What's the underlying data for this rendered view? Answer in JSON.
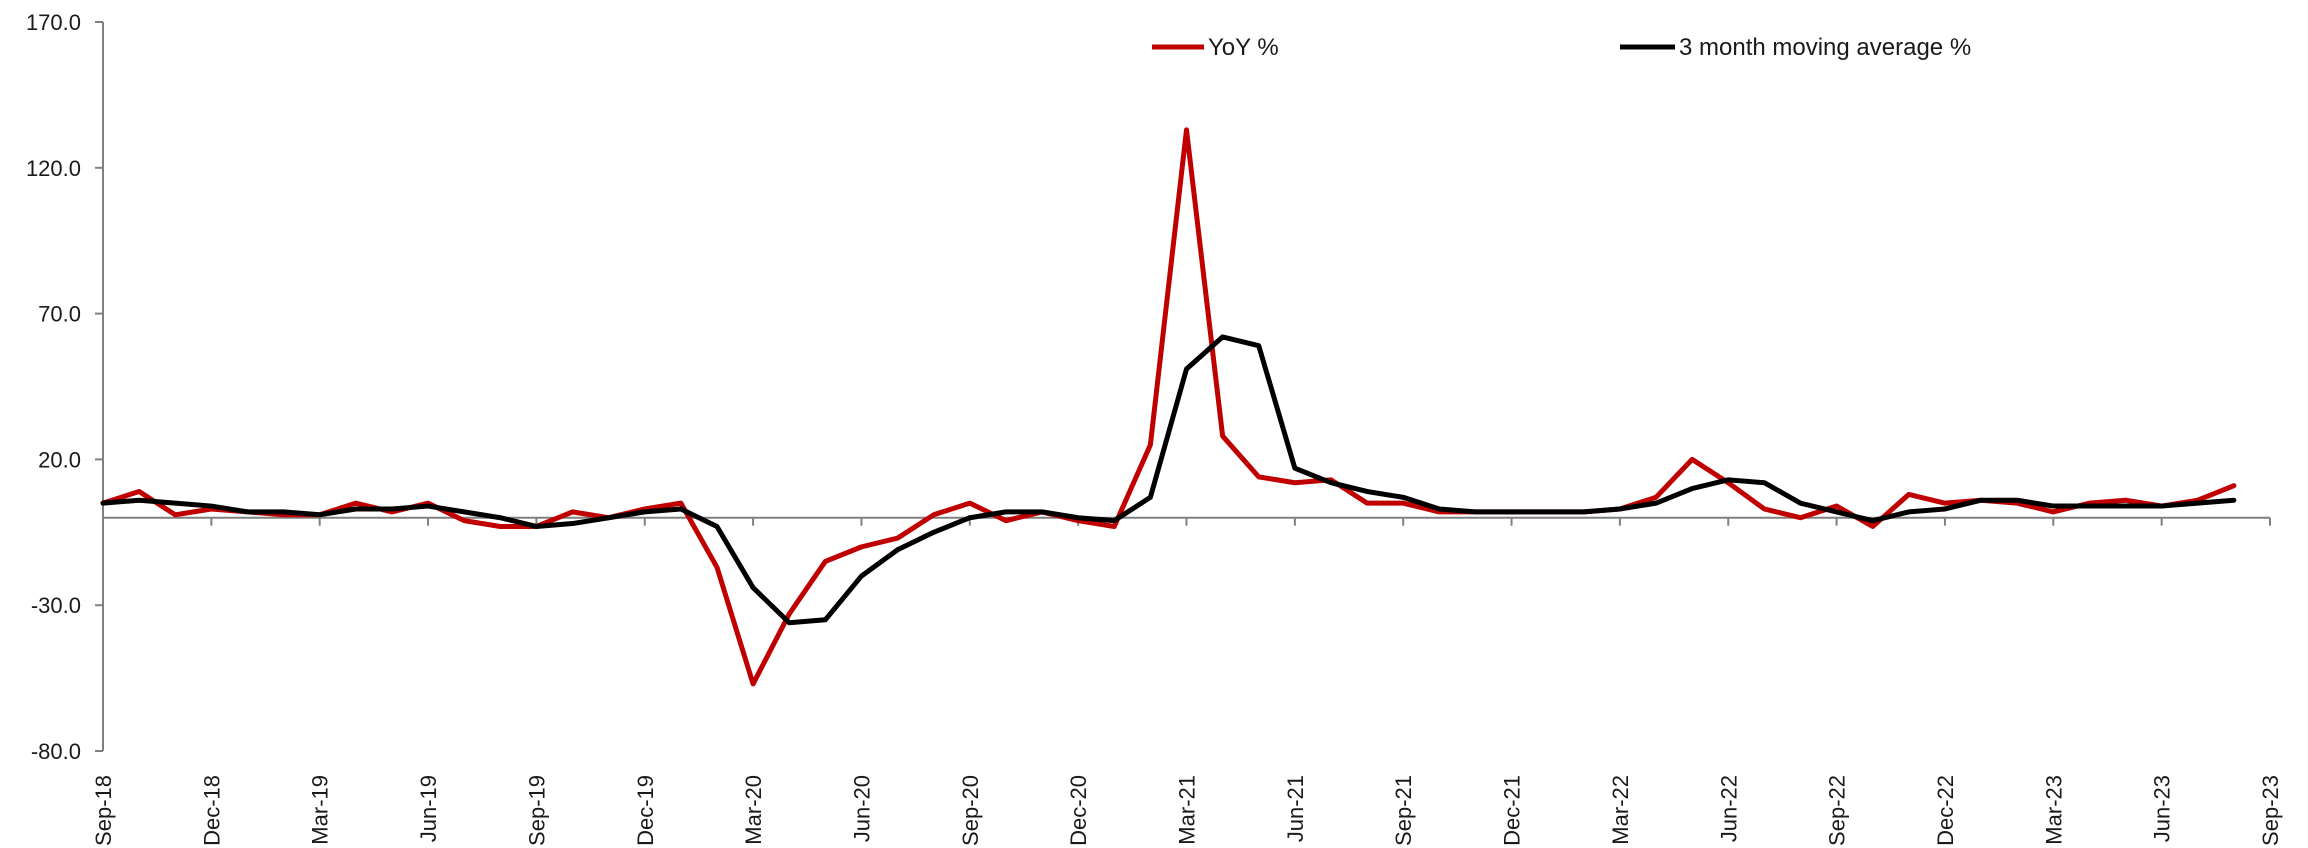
{
  "chart_data": {
    "type": "line",
    "title": "",
    "xlabel": "",
    "ylabel": "",
    "ylim": [
      -80,
      170
    ],
    "y_ticks": [
      "170.0",
      "120.0",
      "70.0",
      "20.0",
      "-30.0",
      "-80.0"
    ],
    "y_tick_values": [
      170,
      120,
      70,
      20,
      -30,
      -80
    ],
    "x_tick_labels": [
      "Sep-18",
      "Dec-18",
      "Mar-19",
      "Jun-19",
      "Sep-19",
      "Dec-19",
      "Mar-20",
      "Jun-20",
      "Sep-20",
      "Dec-20",
      "Mar-21",
      "Jun-21",
      "Sep-21",
      "Dec-21",
      "Mar-22",
      "Jun-22",
      "Sep-22",
      "Dec-22",
      "Mar-23",
      "Jun-23",
      "Sep-23"
    ],
    "grid": false,
    "legend_placement": "top",
    "series": [
      {
        "name": "YoY %",
        "color": "#c00000",
        "values": [
          5,
          9,
          1,
          3,
          2,
          1,
          1,
          5,
          2,
          5,
          -1,
          -3,
          -3,
          2,
          0,
          3,
          5,
          -17,
          -57,
          -33,
          -15,
          -10,
          -7,
          1,
          5,
          -1,
          2,
          -1,
          -3,
          25,
          133,
          28,
          14,
          12,
          13,
          5,
          5,
          2,
          2,
          2,
          2,
          2,
          3,
          7,
          20,
          12,
          3,
          0,
          4,
          -3,
          8,
          5,
          6,
          5,
          2,
          5,
          6,
          4,
          6,
          11
        ],
        "months": [
          "2018-09",
          "2018-10",
          "2018-11",
          "2018-12",
          "2019-01",
          "2019-02",
          "2019-03",
          "2019-04",
          "2019-05",
          "2019-06",
          "2019-07",
          "2019-08",
          "2019-09",
          "2019-10",
          "2019-11",
          "2019-12",
          "2020-01",
          "2020-02",
          "2020-03",
          "2020-04",
          "2020-05",
          "2020-06",
          "2020-07",
          "2020-08",
          "2020-09",
          "2020-10",
          "2020-11",
          "2020-12",
          "2021-01",
          "2021-02",
          "2021-03",
          "2021-04",
          "2021-05",
          "2021-06",
          "2021-07",
          "2021-08",
          "2021-09",
          "2021-10",
          "2021-11",
          "2021-12",
          "2022-01",
          "2022-02",
          "2022-03",
          "2022-04",
          "2022-05",
          "2022-06",
          "2022-07",
          "2022-08",
          "2022-09",
          "2022-10",
          "2022-11",
          "2022-12",
          "2023-01",
          "2023-02",
          "2023-03",
          "2023-04",
          "2023-05",
          "2023-06",
          "2023-07",
          "2023-08"
        ]
      },
      {
        "name": "3 month moving average %",
        "color": "#000000",
        "values": [
          5,
          6,
          5,
          4,
          2,
          2,
          1,
          3,
          3,
          4,
          2,
          0,
          -3,
          -2,
          0,
          2,
          3,
          -3,
          -24,
          -36,
          -35,
          -20,
          -11,
          -5,
          0,
          2,
          2,
          0,
          -1,
          7,
          51,
          62,
          59,
          17,
          12,
          9,
          7,
          3,
          2,
          2,
          2,
          2,
          3,
          5,
          10,
          13,
          12,
          5,
          2,
          -1,
          2,
          3,
          6,
          6,
          4,
          4,
          4,
          4,
          5,
          6
        ],
        "months": [
          "2018-09",
          "2018-10",
          "2018-11",
          "2018-12",
          "2019-01",
          "2019-02",
          "2019-03",
          "2019-04",
          "2019-05",
          "2019-06",
          "2019-07",
          "2019-08",
          "2019-09",
          "2019-10",
          "2019-11",
          "2019-12",
          "2020-01",
          "2020-02",
          "2020-03",
          "2020-04",
          "2020-05",
          "2020-06",
          "2020-07",
          "2020-08",
          "2020-09",
          "2020-10",
          "2020-11",
          "2020-12",
          "2021-01",
          "2021-02",
          "2021-03",
          "2021-04",
          "2021-05",
          "2021-06",
          "2021-07",
          "2021-08",
          "2021-09",
          "2021-10",
          "2021-11",
          "2021-12",
          "2022-01",
          "2022-02",
          "2022-03",
          "2022-04",
          "2022-05",
          "2022-06",
          "2022-07",
          "2022-08",
          "2022-09",
          "2022-10",
          "2022-11",
          "2022-12",
          "2023-01",
          "2023-02",
          "2023-03",
          "2023-04",
          "2023-05",
          "2023-06",
          "2023-07",
          "2023-08"
        ]
      }
    ]
  }
}
